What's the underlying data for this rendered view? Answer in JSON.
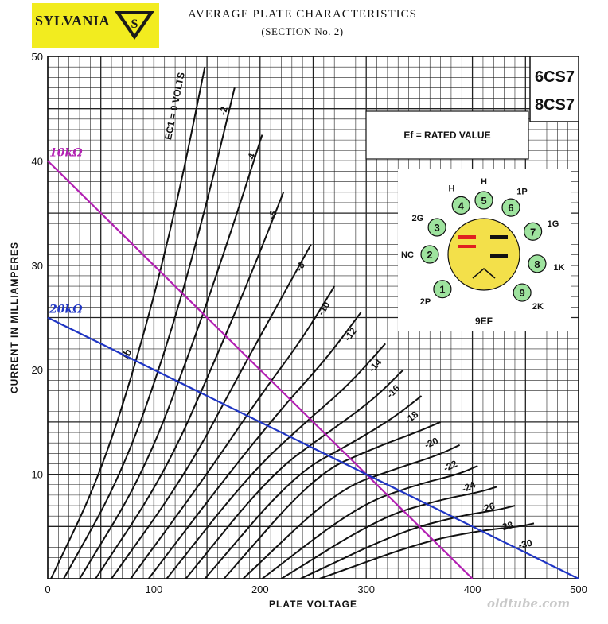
{
  "header": {
    "brand": "SYLVANIA",
    "title": "AVERAGE PLATE CHARACTERISTICS",
    "subtitle": "(SECTION No. 2)"
  },
  "watermark": "oldtube.com",
  "panel": {
    "tube_types": [
      "6CS7",
      "8CS7"
    ],
    "heater_note": "Ef = RATED VALUE"
  },
  "basing": {
    "base_code": "9EF",
    "pins": [
      {
        "num": "1",
        "label": "2P"
      },
      {
        "num": "2",
        "label": "NC"
      },
      {
        "num": "3",
        "label": "2G"
      },
      {
        "num": "4",
        "label": "H"
      },
      {
        "num": "5",
        "label": "H"
      },
      {
        "num": "6",
        "label": "1P"
      },
      {
        "num": "7",
        "label": "1G"
      },
      {
        "num": "8",
        "label": "1K"
      },
      {
        "num": "9",
        "label": "2K"
      }
    ],
    "colors": {
      "pin_fill": "#9ee39e",
      "center_fill": "#f3e04a",
      "red": "#e02020"
    }
  },
  "chart_data": {
    "type": "line",
    "xlabel": "PLATE VOLTAGE",
    "ylabel": "CURRENT IN MILLIAMPERES",
    "xlim": [
      0,
      500
    ],
    "ylim": [
      0,
      50
    ],
    "xticks": [
      "0",
      "100",
      "200",
      "300",
      "400",
      "500"
    ],
    "yticks": [
      "10",
      "20",
      "30",
      "40",
      "50"
    ],
    "grid": true,
    "curve_label": "Ib",
    "curve_label_pos": [
      75,
      21
    ],
    "series": [
      {
        "name": "EC1 = 0 VOLTS",
        "x": [
          3,
          50,
          90,
          122,
          148
        ],
        "y": [
          0,
          10,
          23,
          36,
          49
        ]
      },
      {
        "name": "-2",
        "x": [
          15,
          70,
          115,
          150,
          176
        ],
        "y": [
          0,
          10,
          23,
          36,
          47
        ]
      },
      {
        "name": "-4",
        "x": [
          30,
          90,
          135,
          172,
          202
        ],
        "y": [
          0,
          10,
          22,
          33,
          42.5
        ]
      },
      {
        "name": "-6",
        "x": [
          45,
          110,
          158,
          195,
          222
        ],
        "y": [
          0,
          10,
          21,
          30,
          37
        ]
      },
      {
        "name": "-8",
        "x": [
          60,
          130,
          180,
          218,
          248
        ],
        "y": [
          0,
          10,
          19.5,
          26.5,
          32
        ]
      },
      {
        "name": "-10",
        "x": [
          78,
          150,
          200,
          240,
          270
        ],
        "y": [
          0,
          10,
          17.5,
          23,
          28
        ]
      },
      {
        "name": "-12",
        "x": [
          95,
          170,
          222,
          262,
          295
        ],
        "y": [
          0,
          10,
          16.5,
          21,
          25.5
        ]
      },
      {
        "name": "-14",
        "x": [
          112,
          190,
          243,
          283,
          318
        ],
        "y": [
          0,
          10,
          15,
          18.5,
          22.5
        ]
      },
      {
        "name": "-16",
        "x": [
          130,
          210,
          264,
          305,
          335
        ],
        "y": [
          0,
          10,
          14,
          17,
          20
        ]
      },
      {
        "name": "-18",
        "x": [
          148,
          232,
          287,
          327,
          352
        ],
        "y": [
          0,
          10,
          13,
          15.5,
          17.5
        ]
      },
      {
        "name": "-20",
        "x": [
          166,
          252,
          307,
          347,
          370
        ],
        "y": [
          0,
          10,
          12.5,
          14,
          15
        ]
      },
      {
        "name": "-22",
        "x": [
          184,
          272,
          327,
          367,
          388
        ],
        "y": [
          0,
          8.5,
          10.5,
          11.8,
          12.8
        ]
      },
      {
        "name": "-24",
        "x": [
          202,
          292,
          347,
          387,
          405
        ],
        "y": [
          0,
          7,
          9,
          10,
          10.8
        ]
      },
      {
        "name": "-26",
        "x": [
          220,
          312,
          367,
          407,
          423
        ],
        "y": [
          0,
          5.8,
          7.5,
          8.3,
          8.8
        ]
      },
      {
        "name": "-28",
        "x": [
          238,
          332,
          387,
          425,
          440
        ],
        "y": [
          0,
          4.5,
          6,
          6.6,
          7
        ]
      },
      {
        "name": "-30",
        "x": [
          256,
          352,
          407,
          445,
          458
        ],
        "y": [
          0,
          3.5,
          4.6,
          5,
          5.3
        ]
      }
    ],
    "load_lines": [
      {
        "name": "10kΩ",
        "color": "#b21fb2",
        "x": [
          0,
          400
        ],
        "y": [
          40,
          0
        ]
      },
      {
        "name": "20kΩ",
        "color": "#1f35c4",
        "x": [
          0,
          500
        ],
        "y": [
          25,
          0
        ]
      }
    ]
  }
}
